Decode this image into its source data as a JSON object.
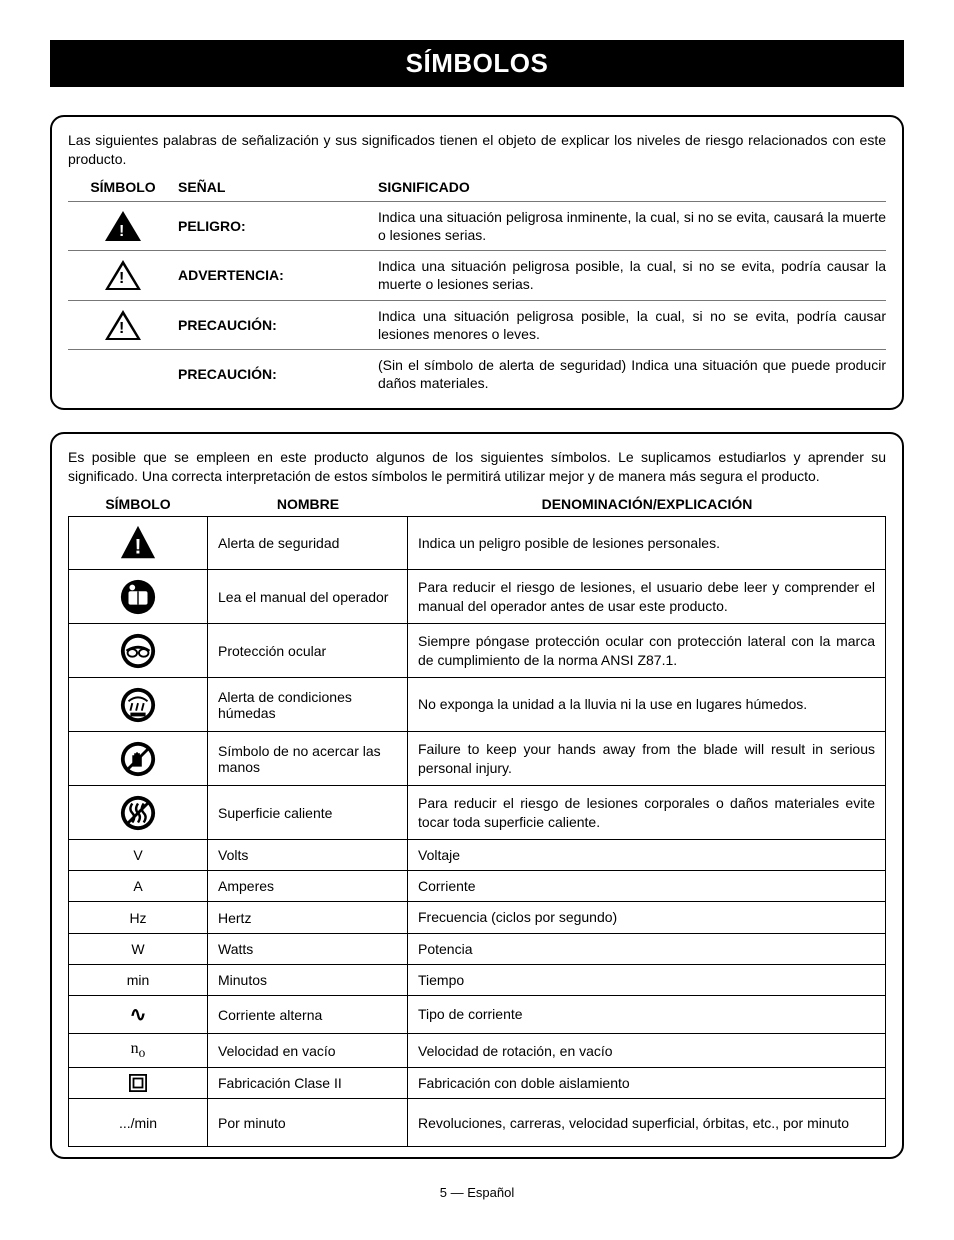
{
  "title": "SÍMBOLOS",
  "panel1": {
    "intro": "Las siguientes palabras de señalización y sus significados tienen el objeto de explicar los niveles de riesgo relacionados con este producto.",
    "headers": {
      "symbol": "SÍMBOLO",
      "signal": "SEÑAL",
      "meaning": "SIGNIFICADO"
    },
    "rows": [
      {
        "icon": "danger",
        "signal": "PELIGRO:",
        "meaning": "Indica una situación peligrosa inminente, la cual, si no se evita, causará la muerte o lesiones serias."
      },
      {
        "icon": "warning",
        "signal": "ADVERTENCIA:",
        "meaning": "Indica una situación peligrosa posible, la cual, si no se evita, podría causar la muerte o lesiones serias."
      },
      {
        "icon": "caution",
        "signal": "PRECAUCIÓN:",
        "meaning": "Indica una situación peligrosa posible, la cual, si no se evita, podría causar lesiones menores o leves."
      },
      {
        "icon": "none",
        "signal": "PRECAUCIÓN:",
        "meaning": "(Sin el símbolo de alerta de seguridad) Indica una situación que puede producir daños materiales."
      }
    ]
  },
  "panel2": {
    "intro": "Es posible que se empleen en este producto algunos de los siguientes símbolos. Le suplicamos estudiarlos y aprender su significado. Una correcta interpretación de estos símbolos le permitirá utilizar mejor y de manera más segura el producto.",
    "headers": {
      "symbol": "SÍMBOLO",
      "name": "NOMBRE",
      "explanation": "DENOMINACIÓN/EXPLICACIÓN"
    },
    "rows": [
      {
        "sym": "alert",
        "name": "Alerta de seguridad",
        "exp": "Indica un peligro posible de lesiones personales.",
        "tall": true
      },
      {
        "sym": "manual",
        "name": "Lea el manual del operador",
        "exp": "Para reducir el riesgo de lesiones, el usuario debe leer y comprender el manual del operador antes de usar este producto.",
        "tall": true
      },
      {
        "sym": "eye",
        "name": "Protección ocular",
        "exp": "Siempre póngase protección ocular con protección lateral con la marca de cumplimiento de la norma ANSI Z87.1.",
        "tall": true
      },
      {
        "sym": "wet",
        "name": "Alerta de condiciones húmedas",
        "exp": "No exponga la unidad a la lluvia ni la use en lugares húmedos.",
        "tall": true
      },
      {
        "sym": "hands",
        "name": "Símbolo de no acercar las manos",
        "exp": "Failure to keep your hands away from the blade will result in serious personal injury.",
        "tall": true
      },
      {
        "sym": "hot",
        "name": "Superficie caliente",
        "exp": "Para reducir el riesgo de lesiones corporales o daños materiales evite tocar toda superficie caliente.",
        "tall": true
      },
      {
        "sym": "V",
        "name": "Volts",
        "exp": "Voltaje"
      },
      {
        "sym": "A",
        "name": "Amperes",
        "exp": "Corriente"
      },
      {
        "sym": "Hz",
        "name": "Hertz",
        "exp": "Frecuencia (ciclos por segundo)"
      },
      {
        "sym": "W",
        "name": "Watts",
        "exp": "Potencia"
      },
      {
        "sym": "min",
        "name": "Minutos",
        "exp": "Tiempo"
      },
      {
        "sym": "ac",
        "name": "Corriente alterna",
        "exp": "Tipo de corriente"
      },
      {
        "sym": "no",
        "name": "Velocidad en vacío",
        "exp": "Velocidad de rotación, en vacío"
      },
      {
        "sym": "class2",
        "name": "Fabricación Clase II",
        "exp": "Fabricación con doble aislamiento"
      },
      {
        "sym": ".../min",
        "name": "Por minuto",
        "exp": "Revoluciones, carreras, velocidad superficial, órbitas, etc., por minuto",
        "tall2": true
      }
    ]
  },
  "footer": "5 — Español",
  "colors": {
    "black": "#000000",
    "white": "#ffffff"
  }
}
